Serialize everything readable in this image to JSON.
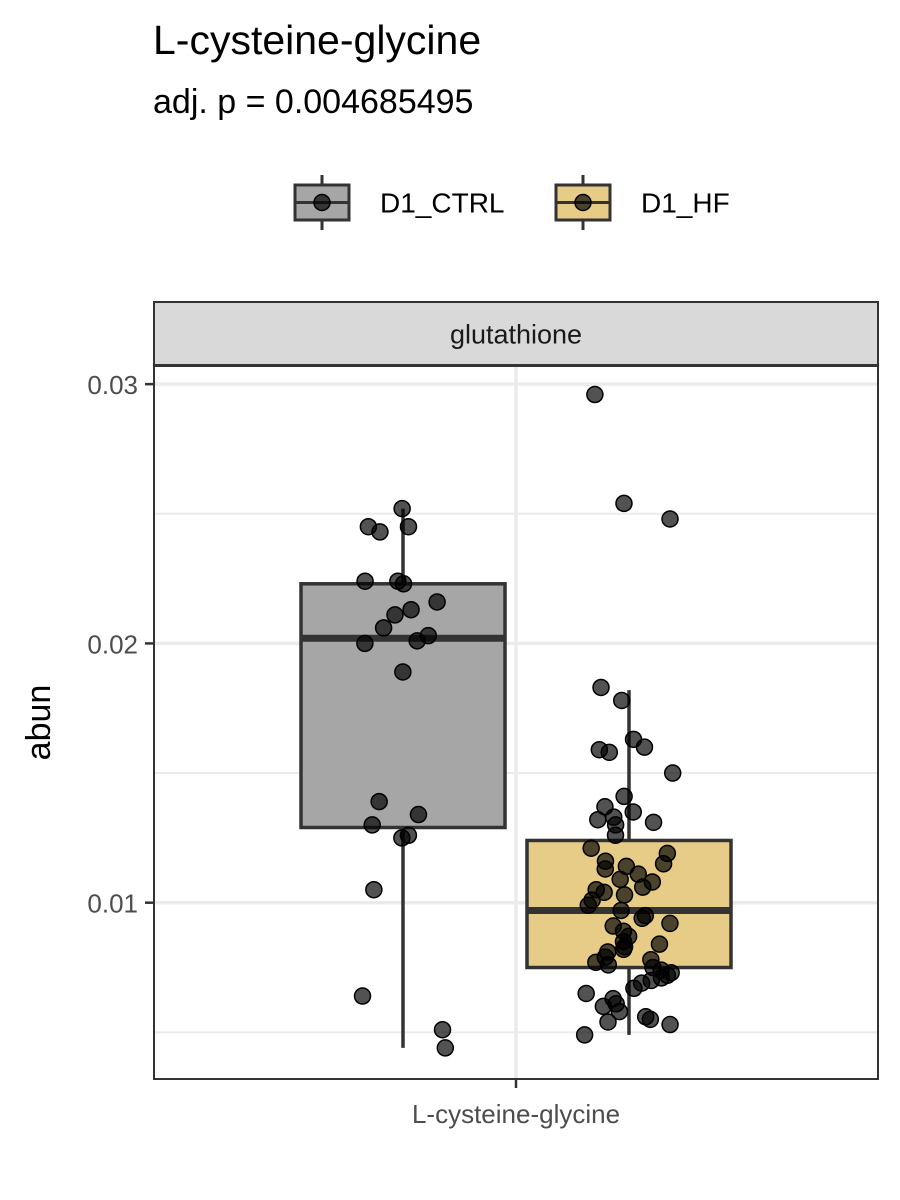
{
  "title": "L-cysteine-glycine",
  "subtitle": "adj. p = 0.004685495",
  "chart_data": {
    "type": "box",
    "facet_label": "glutathione",
    "categories": [
      "L-cysteine-glycine"
    ],
    "xlabel": "",
    "ylabel": "abun",
    "ylim": [
      0.0032,
      0.0307
    ],
    "yticks": [
      0.01,
      0.02,
      0.03
    ],
    "ytick_labels": [
      "0.01",
      "0.02",
      "0.03"
    ],
    "legend": {
      "position": "top",
      "entries": [
        "D1_CTRL",
        "D1_HF"
      ]
    },
    "grid": true,
    "series": [
      {
        "name": "D1_CTRL",
        "color": "#a6a6a6",
        "box": {
          "q1": 0.0129,
          "median": 0.0202,
          "q3": 0.0223,
          "whisker_low": 0.0044,
          "whisker_high": 0.0252
        },
        "points": [
          0.0252,
          0.0245,
          0.0245,
          0.0243,
          0.0224,
          0.0223,
          0.0224,
          0.0216,
          0.0213,
          0.0211,
          0.0206,
          0.0203,
          0.0201,
          0.02,
          0.0189,
          0.0139,
          0.0134,
          0.013,
          0.0126,
          0.0125,
          0.0105,
          0.0064,
          0.0051,
          0.0044
        ]
      },
      {
        "name": "D1_HF",
        "color": "#e6cc86",
        "box": {
          "q1": 0.0075,
          "median": 0.0097,
          "q3": 0.0124,
          "whisker_low": 0.0049,
          "whisker_high": 0.0182
        },
        "points": [
          0.0296,
          0.0254,
          0.0248,
          0.0183,
          0.0178,
          0.0163,
          0.016,
          0.0158,
          0.0159,
          0.015,
          0.0141,
          0.0137,
          0.0135,
          0.0133,
          0.0132,
          0.0131,
          0.013,
          0.0126,
          0.0121,
          0.0119,
          0.0116,
          0.0115,
          0.0114,
          0.0113,
          0.0111,
          0.0109,
          0.0108,
          0.0106,
          0.0105,
          0.0104,
          0.0103,
          0.0101,
          0.0099,
          0.0097,
          0.0095,
          0.0094,
          0.0092,
          0.0091,
          0.0089,
          0.0087,
          0.0085,
          0.0084,
          0.0083,
          0.0082,
          0.0081,
          0.0079,
          0.0078,
          0.0077,
          0.0076,
          0.0075,
          0.0074,
          0.0073,
          0.0072,
          0.0071,
          0.007,
          0.0069,
          0.0067,
          0.0065,
          0.0063,
          0.0061,
          0.006,
          0.0058,
          0.0056,
          0.0055,
          0.0054,
          0.0053,
          0.0049
        ]
      }
    ]
  }
}
